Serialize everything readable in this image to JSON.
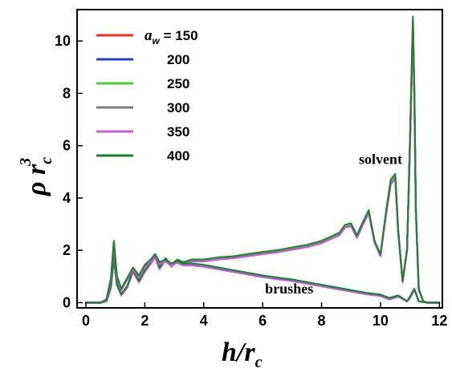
{
  "chart_data": {
    "type": "line",
    "title": "",
    "xlabel": {
      "base": "h/r",
      "sub": "c"
    },
    "ylabel": {
      "base": "ρ r",
      "sup": "3",
      "sub": "c"
    },
    "xlim": [
      -0.3,
      12.1
    ],
    "ylim": [
      -0.2,
      11.2
    ],
    "xticks": [
      0,
      2,
      4,
      6,
      8,
      10,
      12
    ],
    "yticks": [
      0,
      2,
      4,
      6,
      8,
      10
    ],
    "grid": false,
    "legend": {
      "position": "top-left",
      "title_symbol": "a",
      "title_sub": "w"
    },
    "annotations": [
      {
        "text": "solvent",
        "x": 10.0,
        "y": 5.3
      },
      {
        "text": "brushes",
        "x": 6.9,
        "y": 0.35
      }
    ],
    "series": [
      {
        "name": "150",
        "color": "#e8302a"
      },
      {
        "name": "200",
        "color": "#2b3fb5"
      },
      {
        "name": "250",
        "color": "#55c23a"
      },
      {
        "name": "300",
        "color": "#7d7d7d"
      },
      {
        "name": "350",
        "color": "#c25fd4"
      },
      {
        "name": "400",
        "color": "#1e7d30"
      }
    ],
    "profiles": {
      "solvent": {
        "x": [
          0.0,
          0.5,
          0.7,
          0.85,
          0.95,
          1.05,
          1.2,
          1.4,
          1.6,
          1.8,
          2.0,
          2.2,
          2.35,
          2.5,
          2.7,
          2.9,
          3.1,
          3.3,
          3.6,
          4.0,
          4.5,
          5.0,
          5.5,
          6.0,
          6.5,
          7.0,
          7.5,
          8.0,
          8.3,
          8.6,
          8.8,
          9.0,
          9.2,
          9.4,
          9.6,
          9.8,
          10.0,
          10.2,
          10.35,
          10.5,
          10.6,
          10.75,
          10.9,
          11.0,
          11.1,
          11.15,
          11.2,
          11.3,
          11.45,
          11.6,
          12.0
        ],
        "y": [
          0.0,
          0.0,
          0.05,
          0.6,
          1.7,
          0.7,
          0.3,
          0.6,
          1.2,
          0.8,
          1.2,
          1.5,
          1.75,
          1.3,
          1.65,
          1.4,
          1.6,
          1.5,
          1.6,
          1.6,
          1.68,
          1.72,
          1.8,
          1.88,
          1.95,
          2.05,
          2.15,
          2.3,
          2.45,
          2.6,
          2.9,
          2.95,
          2.5,
          3.0,
          3.45,
          2.3,
          1.8,
          3.5,
          4.6,
          4.8,
          2.7,
          0.8,
          2.0,
          6.0,
          10.7,
          8.0,
          3.5,
          0.5,
          0.05,
          0.0,
          0.0
        ]
      },
      "brushes": {
        "x": [
          0.0,
          0.5,
          0.7,
          0.85,
          0.95,
          1.05,
          1.2,
          1.4,
          1.6,
          1.8,
          2.0,
          2.2,
          2.35,
          2.5,
          2.7,
          2.9,
          3.1,
          3.3,
          3.6,
          4.0,
          4.5,
          5.0,
          5.5,
          6.0,
          6.5,
          7.0,
          7.5,
          8.0,
          8.5,
          9.0,
          9.5,
          10.0,
          10.3,
          10.6,
          10.9,
          11.0,
          11.15,
          11.3,
          11.6,
          12.0
        ],
        "y": [
          0.0,
          0.0,
          0.1,
          0.9,
          2.3,
          1.0,
          0.5,
          0.9,
          1.3,
          1.0,
          1.4,
          1.6,
          1.8,
          1.5,
          1.6,
          1.45,
          1.55,
          1.45,
          1.45,
          1.4,
          1.3,
          1.2,
          1.1,
          1.0,
          0.92,
          0.85,
          0.75,
          0.65,
          0.55,
          0.45,
          0.35,
          0.28,
          0.15,
          0.25,
          0.05,
          0.2,
          0.5,
          0.05,
          0.0,
          0.0
        ]
      }
    }
  }
}
